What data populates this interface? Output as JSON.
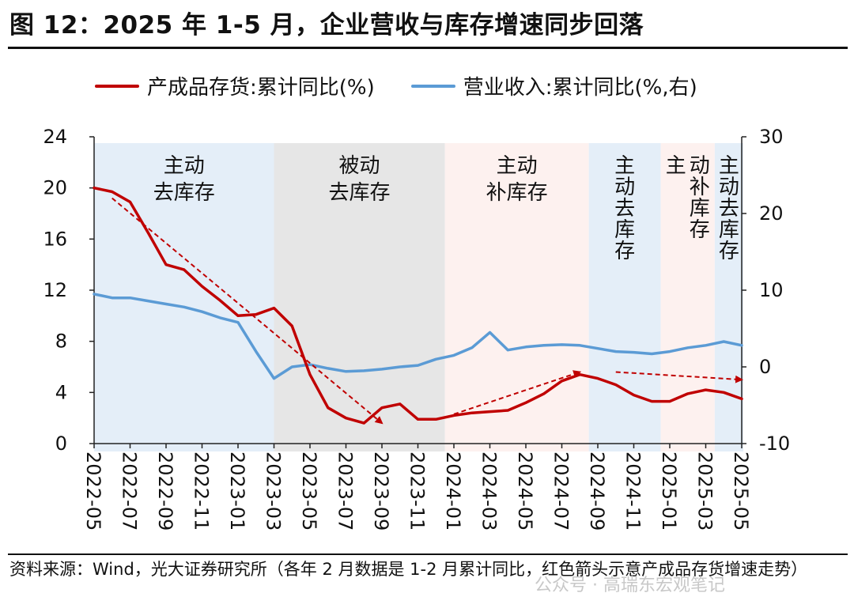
{
  "title": "图 12：2025 年 1-5 月，企业营收与库存增速同步回落",
  "source": "资料来源：Wind，光大证券研究所（各年 2 月数据是 1-2 月累计同比，红色箭头示意产成品存货增速走势）",
  "watermark": "公众号 · 高瑞东宏观笔记",
  "colors": {
    "inventory": "#c00000",
    "revenue": "#5b9bd5",
    "arrow": "#c00000",
    "phase_blue": "#e4eef8",
    "phase_grey": "#e6e6e6",
    "phase_pink": "#fdf1ef"
  },
  "chart_data": {
    "type": "line",
    "x_ticks": [
      "2022-05",
      "2022-07",
      "2022-09",
      "2022-11",
      "2023-01",
      "2023-03",
      "2023-05",
      "2023-07",
      "2023-09",
      "2023-11",
      "2024-01",
      "2024-03",
      "2024-05",
      "2024-07",
      "2024-09",
      "2024-11",
      "2025-01",
      "2025-03",
      "2025-05"
    ],
    "y_left": {
      "min": 0,
      "max": 24,
      "ticks": [
        0,
        4,
        8,
        12,
        16,
        20,
        24
      ]
    },
    "y_right": {
      "min": -10,
      "max": 30,
      "ticks": [
        -10,
        0,
        10,
        20,
        30
      ]
    },
    "grid": false,
    "legend_position": "top",
    "series": [
      {
        "name": "产成品存货:累计同比(%)",
        "axis": "left",
        "x": [
          "2022-05",
          "2022-06",
          "2022-07",
          "2022-08",
          "2022-09",
          "2022-10",
          "2022-11",
          "2022-12",
          "2023-01",
          "2023-02",
          "2023-03",
          "2023-04",
          "2023-05",
          "2023-06",
          "2023-07",
          "2023-08",
          "2023-09",
          "2023-10",
          "2023-11",
          "2023-12",
          "2024-01",
          "2024-02",
          "2024-03",
          "2024-04",
          "2024-05",
          "2024-06",
          "2024-07",
          "2024-08",
          "2024-09",
          "2024-10",
          "2024-11",
          "2024-12",
          "2025-01",
          "2025-02",
          "2025-03",
          "2025-04",
          "2025-05"
        ],
        "values": [
          20.0,
          19.7,
          18.9,
          16.5,
          14.0,
          13.6,
          12.3,
          11.2,
          10.0,
          10.1,
          10.6,
          9.2,
          5.4,
          2.8,
          2.0,
          1.6,
          2.8,
          3.1,
          1.9,
          1.9,
          2.2,
          2.4,
          2.5,
          2.6,
          3.2,
          3.9,
          4.9,
          5.4,
          5.1,
          4.6,
          3.8,
          3.3,
          3.3,
          3.9,
          4.2,
          4.0,
          3.5
        ]
      },
      {
        "name": "营业收入:累计同比(%,右)",
        "axis": "right",
        "x": [
          "2022-05",
          "2022-06",
          "2022-07",
          "2022-08",
          "2022-09",
          "2022-10",
          "2022-11",
          "2022-12",
          "2023-01",
          "2023-02",
          "2023-03",
          "2023-04",
          "2023-05",
          "2023-06",
          "2023-07",
          "2023-08",
          "2023-09",
          "2023-10",
          "2023-11",
          "2023-12",
          "2024-01",
          "2024-02",
          "2024-03",
          "2024-04",
          "2024-05",
          "2024-06",
          "2024-07",
          "2024-08",
          "2024-09",
          "2024-10",
          "2024-11",
          "2024-12",
          "2025-01",
          "2025-02",
          "2025-03",
          "2025-04",
          "2025-05"
        ],
        "values": [
          9.5,
          9.0,
          9.0,
          8.6,
          8.2,
          7.8,
          7.2,
          6.4,
          5.8,
          2.0,
          -1.5,
          0.0,
          0.3,
          -0.2,
          -0.6,
          -0.5,
          -0.3,
          0.0,
          0.2,
          1.0,
          1.5,
          2.5,
          4.5,
          2.2,
          2.6,
          2.8,
          2.9,
          2.8,
          2.4,
          2.0,
          1.9,
          1.7,
          2.0,
          2.5,
          2.8,
          3.3,
          2.8
        ]
      }
    ],
    "phases": [
      {
        "from": 0,
        "to": 10,
        "tone": "blue",
        "label_lines": [
          "主动",
          "去库存"
        ],
        "vertical": false
      },
      {
        "from": 10,
        "to": 19.5,
        "tone": "grey",
        "label_lines": [
          "被动",
          "去库存"
        ],
        "vertical": false
      },
      {
        "from": 19.5,
        "to": 27.5,
        "tone": "pink",
        "label_lines": [
          "主动",
          "补库存"
        ],
        "vertical": false
      },
      {
        "from": 27.5,
        "to": 31.5,
        "tone": "blue",
        "label_lines": [
          "主动去库存"
        ],
        "vertical": true
      },
      {
        "from": 31.5,
        "to": 34.5,
        "tone": "pink",
        "label_lines": [
          "主",
          "动补库存"
        ],
        "vertical": true
      },
      {
        "from": 34.5,
        "to": 37,
        "tone": "blue",
        "label_lines": [
          "主动去库存"
        ],
        "vertical": true
      }
    ],
    "arrows": [
      {
        "from": [
          "2022-06",
          19.2
        ],
        "to": [
          "2023-09",
          1.6
        ]
      },
      {
        "from": [
          "2024-01",
          2.3
        ],
        "to": [
          "2024-08",
          5.6
        ]
      },
      {
        "from": [
          "2024-10",
          5.6
        ],
        "to": [
          "2025-05",
          5.0
        ]
      }
    ]
  }
}
